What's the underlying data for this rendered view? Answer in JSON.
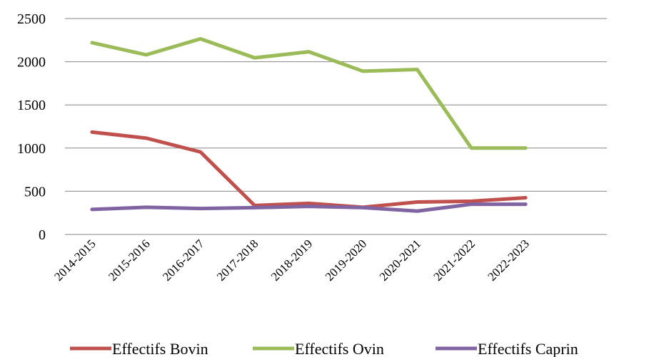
{
  "chart_data": {
    "type": "line",
    "title": "",
    "xlabel": "",
    "ylabel": "",
    "ylim": [
      0,
      2500
    ],
    "yticks": [
      "0",
      "500",
      "1000",
      "1500",
      "2000",
      "2500"
    ],
    "categories": [
      "2014-2015",
      "2015-2016",
      "2016-2017",
      "2017-2018",
      "2018-2019",
      "2019-2020",
      "2020-2021",
      "2021-2022",
      "2022-2023"
    ],
    "grid": true,
    "legend_position": "bottom",
    "series": [
      {
        "name": "Effectifs Bovin",
        "color": "#C0504D",
        "values": [
          1185,
          1115,
          955,
          335,
          360,
          315,
          375,
          385,
          425
        ]
      },
      {
        "name": "Effectifs Ovin",
        "color": "#9BBB59",
        "values": [
          2220,
          2080,
          2265,
          2045,
          2115,
          1890,
          1910,
          1000,
          1000
        ]
      },
      {
        "name": "Effectifs Caprin",
        "color": "#8064A2",
        "values": [
          290,
          315,
          300,
          310,
          325,
          310,
          270,
          350,
          350
        ]
      }
    ]
  }
}
